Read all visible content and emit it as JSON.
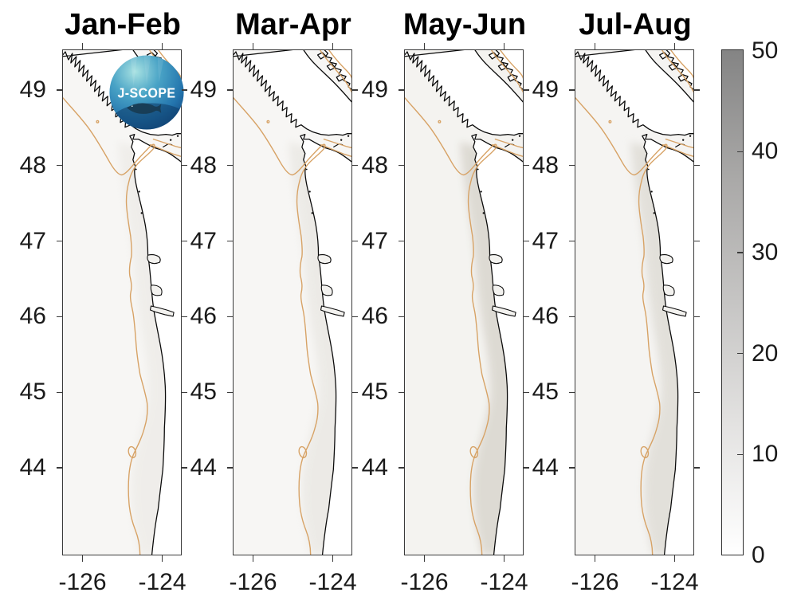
{
  "chart_data": {
    "type": "map",
    "panels": [
      {
        "title": "Jan-Feb",
        "coastal_shading_level": 1
      },
      {
        "title": "Mar-Apr",
        "coastal_shading_level": 1
      },
      {
        "title": "May-Jun",
        "coastal_shading_level": 3
      },
      {
        "title": "Jul-Aug",
        "coastal_shading_level": 2
      }
    ],
    "y_axis": {
      "tick_labels": [
        "49",
        "48",
        "47",
        "46",
        "45",
        "44"
      ]
    },
    "x_axis": {
      "tick_labels": [
        "-126",
        "-124"
      ]
    },
    "colorbar": {
      "tick_labels": [
        "50",
        "40",
        "30",
        "20",
        "10",
        "0"
      ],
      "min": 0,
      "max": 50,
      "orientation": "vertical",
      "style": "grayscale, dark gray at top (50) fading to white at bottom (0)",
      "top_color": "#848484",
      "bottom_color": "#ffffff"
    },
    "map_features": {
      "coastline_color": "#0a0a0a",
      "isobath_contour_color": "#d7a265",
      "land_fill": "#ffffff",
      "ocean_fill": "#f7f6f4",
      "field_values": "near 0 (white) everywhere, with faint gray band along the shelf/coast, slightly darker in May-Jun and Jul-Aug"
    }
  },
  "logo": {
    "label": "J-SCOPE"
  }
}
